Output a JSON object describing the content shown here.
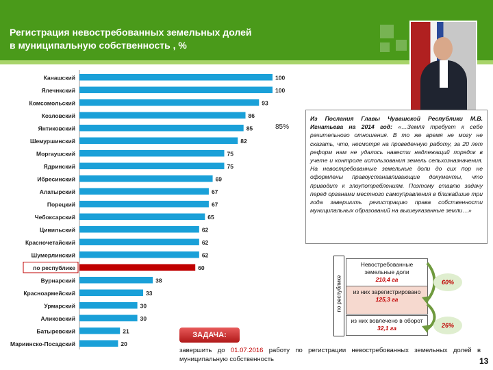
{
  "slide": {
    "title_line1": "Регистрация невостребованных земельных долей",
    "title_line2": "в муниципальную собственность , %",
    "page_number": "13",
    "colors": {
      "header": "#4a9a1a",
      "bar": "#1aa0d8",
      "highlight_bar": "#c00000",
      "accent": "#c00000"
    }
  },
  "chart_data": {
    "type": "bar",
    "orientation": "horizontal",
    "categories": [
      "Канашский",
      "Ядринский",
      "Комсомольский",
      "Козловский",
      "Янтиковский",
      "Шемуршинский",
      "Моргаушский",
      "Ядринский",
      "Ибресинский",
      "Алатырский",
      "Порецкий",
      "Чебоксарский",
      "Цивильский",
      "Красночетайский",
      "Шумерлинский",
      "по республике",
      "Вурнарский",
      "Красноармейский",
      "Урмарский",
      "Аликовский",
      "Батыревский",
      "Мариинско-Посадский"
    ],
    "categories_display": [
      "Канашский",
      "Ялечнкский",
      "Комсомольский",
      "Козловский",
      "Янтиковский",
      "Шемуршинский",
      "Моргаушский",
      "Ядринский",
      "Ибресинский",
      "Алатырский",
      "Порецкий",
      "Чебоксарский",
      "Цивильский",
      "Красночетайский",
      "Шумерлинский",
      "по республике",
      "Вурнарский",
      "Красноармейский",
      "Урмарский",
      "Аликовский",
      "Батыревский",
      "Мариинско-Посадский"
    ],
    "values": [
      100,
      100,
      93,
      86,
      85,
      82,
      75,
      75,
      69,
      67,
      67,
      65,
      62,
      62,
      62,
      60,
      38,
      33,
      30,
      30,
      21,
      20
    ],
    "value_labels": [
      "100",
      "100",
      "93",
      "86",
      "85",
      "82",
      "75",
      "75",
      "69",
      "67",
      "67",
      "65",
      "62",
      "62",
      "62",
      "60",
      "38",
      "33",
      "30",
      "30",
      "21",
      "20"
    ],
    "highlight_category": "по республике",
    "xlim": [
      0,
      100
    ],
    "annotation": "85%"
  },
  "quote": {
    "source": "Из Послания Главы Чувашской Республики М.В. Игнатьева на 2014 год:",
    "text": "«…Земля требует к себе рачительного отношения. В то же время не могу не сказать, что, несмотря на проведенную работу, за 20 лет реформ нам не удалось навести надлежащий порядок в учете и контроле использования земель сельхозназначения. На невостребованные земельные доли до сих пор не оформлены правоустанавливающие документы, что приводит к злоупотреблениям. Поэтому ставлю задачу перед органами местного самоуправления в ближайшие три года завершить регистрацию права собственности муниципальных образований на вышеуказанные земли…»"
  },
  "republic_box": {
    "vertical_label": "по республике",
    "box1_label": "Невостребованные земельные доли",
    "box1_value": "210,4 га",
    "box2_label": "из них зарегистрировано",
    "box2_value": "125,3 га",
    "box3_label": "из них вовлечено в оборот",
    "box3_value": "32,1 га",
    "pct1": "60%",
    "pct2": "26%"
  },
  "task": {
    "button_label": "ЗАДАЧА:",
    "text_before": "завершить до ",
    "date": "01.07.2016",
    "text_after": " работу по регистрации невостребованных земельных долей в муниципальную собственность"
  }
}
